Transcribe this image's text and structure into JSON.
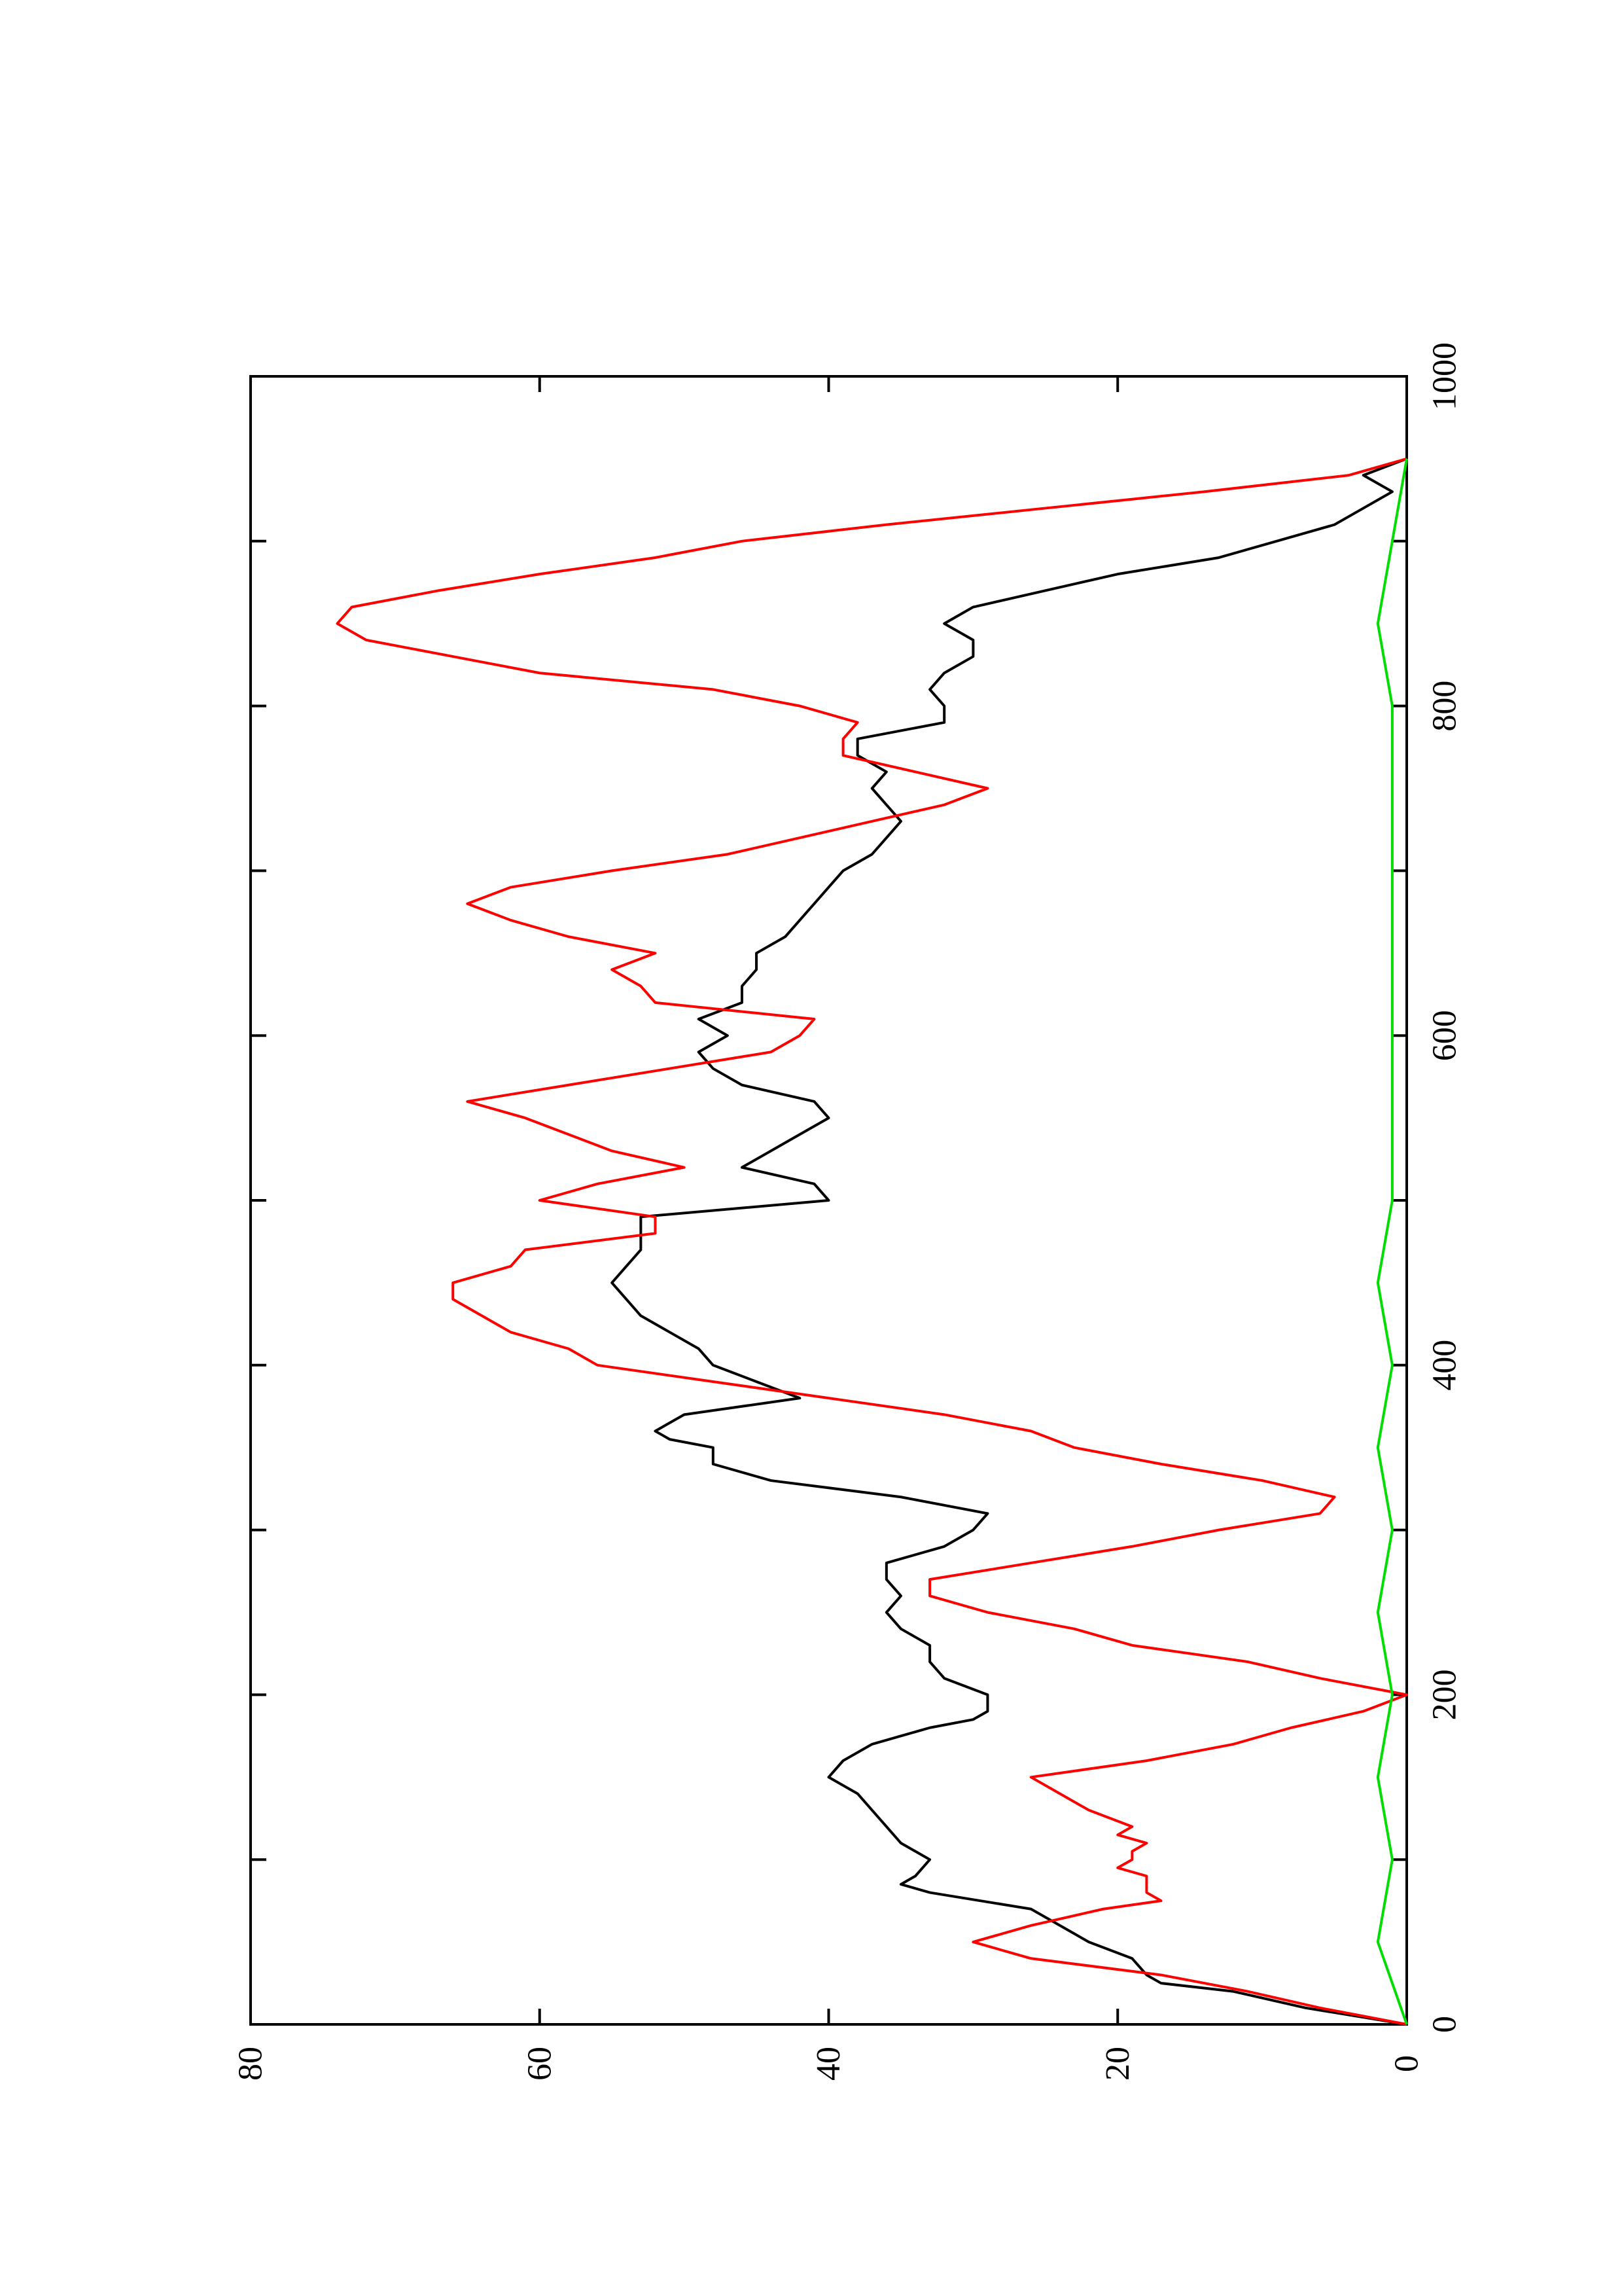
{
  "chart_data": {
    "type": "line",
    "orientation": "rotated-90-ccw",
    "title": "",
    "xlabel": "",
    "ylabel": "",
    "xlim": [
      0,
      1000
    ],
    "ylim": [
      0,
      80
    ],
    "x_ticks": [
      "0",
      "200",
      "400",
      "600",
      "800",
      "1000"
    ],
    "y_ticks": [
      "0",
      "20",
      "40",
      "60",
      "80"
    ],
    "grid": false,
    "legend": "none",
    "series": [
      {
        "color": "#000000",
        "x": [
          0,
          10,
          20,
          25,
          30,
          40,
          50,
          60,
          70,
          80,
          85,
          90,
          100,
          110,
          120,
          130,
          140,
          150,
          160,
          170,
          180,
          185,
          190,
          200,
          210,
          220,
          230,
          240,
          250,
          260,
          270,
          280,
          290,
          300,
          310,
          320,
          330,
          340,
          345,
          350,
          355,
          360,
          370,
          380,
          390,
          400,
          410,
          420,
          430,
          440,
          450,
          460,
          470,
          480,
          490,
          500,
          510,
          520,
          530,
          540,
          550,
          560,
          570,
          580,
          590,
          600,
          610,
          620,
          630,
          640,
          650,
          660,
          670,
          680,
          690,
          700,
          710,
          720,
          730,
          740,
          750,
          760,
          770,
          780,
          790,
          800,
          810,
          820,
          830,
          840,
          850,
          860,
          870,
          880,
          890,
          900,
          910,
          920,
          930,
          940,
          950
        ],
        "y": [
          0,
          7,
          12,
          17,
          18,
          19,
          22,
          24,
          26,
          33,
          35,
          34,
          33,
          35,
          36,
          37,
          38,
          40,
          39,
          37,
          33,
          30,
          29,
          29,
          32,
          33,
          33,
          35,
          36,
          35,
          36,
          36,
          32,
          30,
          29,
          35,
          44,
          48,
          48,
          48,
          51,
          52,
          50,
          42,
          45,
          48,
          49,
          51,
          53,
          54,
          55,
          54,
          53,
          53,
          53,
          40,
          41,
          46,
          44,
          42,
          40,
          41,
          46,
          48,
          49,
          47,
          49,
          46,
          46,
          45,
          45,
          43,
          42,
          41,
          40,
          39,
          37,
          36,
          35,
          36,
          37,
          36,
          38,
          38,
          32,
          32,
          33,
          32,
          30,
          30,
          32,
          30,
          25,
          20,
          13,
          9,
          5,
          3,
          1,
          3,
          0
        ]
      },
      {
        "color": "#ff0000",
        "x": [
          0,
          10,
          20,
          30,
          40,
          50,
          60,
          70,
          75,
          80,
          90,
          95,
          100,
          105,
          110,
          115,
          120,
          130,
          140,
          150,
          160,
          170,
          180,
          190,
          200,
          210,
          220,
          230,
          240,
          250,
          260,
          270,
          280,
          290,
          300,
          310,
          320,
          330,
          340,
          350,
          360,
          370,
          380,
          390,
          400,
          410,
          420,
          430,
          440,
          450,
          460,
          470,
          480,
          490,
          500,
          510,
          520,
          530,
          540,
          550,
          560,
          570,
          580,
          590,
          600,
          610,
          620,
          630,
          640,
          650,
          660,
          670,
          680,
          690,
          700,
          710,
          720,
          730,
          740,
          750,
          760,
          770,
          780,
          790,
          800,
          810,
          820,
          830,
          840,
          850,
          860,
          870,
          880,
          890,
          900,
          910,
          920,
          930,
          940,
          950
        ],
        "y": [
          0,
          6,
          11,
          17,
          26,
          30,
          26,
          21,
          17,
          18,
          18,
          20,
          19,
          19,
          18,
          20,
          19,
          22,
          24,
          26,
          18,
          12,
          8,
          3,
          0,
          6,
          11,
          19,
          23,
          29,
          33,
          33,
          26,
          19,
          13,
          6,
          5,
          10,
          17,
          23,
          26,
          32,
          40,
          48,
          56,
          58,
          62,
          64,
          66,
          66,
          62,
          61,
          52,
          52,
          60,
          56,
          50,
          55,
          58,
          61,
          65,
          58,
          51,
          44,
          42,
          41,
          52,
          53,
          55,
          52,
          58,
          62,
          65,
          62,
          55,
          47,
          42,
          37,
          32,
          29,
          34,
          39,
          39,
          38,
          42,
          48,
          60,
          66,
          72,
          74,
          73,
          67,
          60,
          52,
          46,
          36,
          25,
          14,
          4,
          0
        ]
      },
      {
        "color": "#00dd00",
        "x": [
          0,
          50,
          100,
          150,
          200,
          250,
          300,
          350,
          400,
          450,
          500,
          550,
          600,
          650,
          700,
          750,
          800,
          850,
          900,
          950
        ],
        "y": [
          0,
          2,
          1,
          2,
          1,
          2,
          1,
          2,
          1,
          2,
          1,
          1,
          1,
          1,
          1,
          1,
          1,
          2,
          1,
          0
        ]
      }
    ]
  }
}
